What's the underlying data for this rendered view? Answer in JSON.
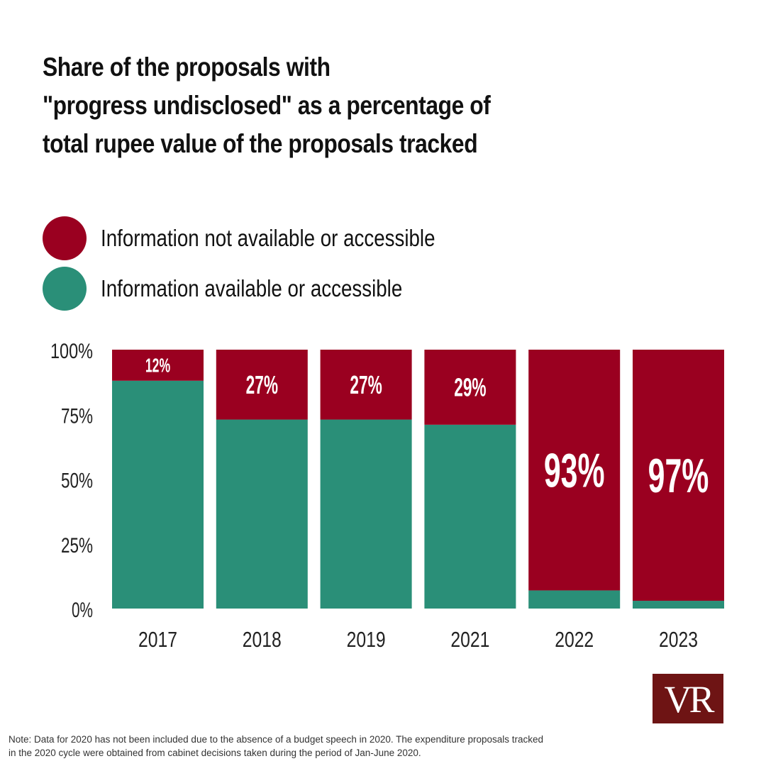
{
  "title_lines": [
    "Share of the proposals with",
    "\"progress undisclosed\" as a percentage of",
    "total rupee value of the proposals tracked"
  ],
  "legend": [
    {
      "label": "Information not available or accessible",
      "color": "#9a0020"
    },
    {
      "label": "Information available or accessible",
      "color": "#2a8f78"
    }
  ],
  "chart_data": {
    "type": "bar",
    "stacked": true,
    "categories": [
      "2017",
      "2018",
      "2019",
      "2021",
      "2022",
      "2023"
    ],
    "series": [
      {
        "name": "Information available or accessible",
        "color": "#2a8f78",
        "values": [
          88,
          73,
          73,
          71,
          7,
          3
        ]
      },
      {
        "name": "Information not available or accessible",
        "color": "#9a0020",
        "values": [
          12,
          27,
          27,
          29,
          93,
          97
        ]
      }
    ],
    "data_labels": [
      "12%",
      "27%",
      "27%",
      "29%",
      "93%",
      "97%"
    ],
    "y_ticks": [
      "0%",
      "25%",
      "50%",
      "75%",
      "100%"
    ],
    "ylim": [
      0,
      100
    ],
    "grid": false,
    "legend_position": "top-left"
  },
  "note_lines": [
    "Note: Data for 2020 has not been included due to the absence of a budget speech in 2020. The expenditure proposals tracked",
    "in the 2020 cycle were obtained from cabinet decisions taken during the period of Jan-June 2020."
  ],
  "logo_text": "VR"
}
